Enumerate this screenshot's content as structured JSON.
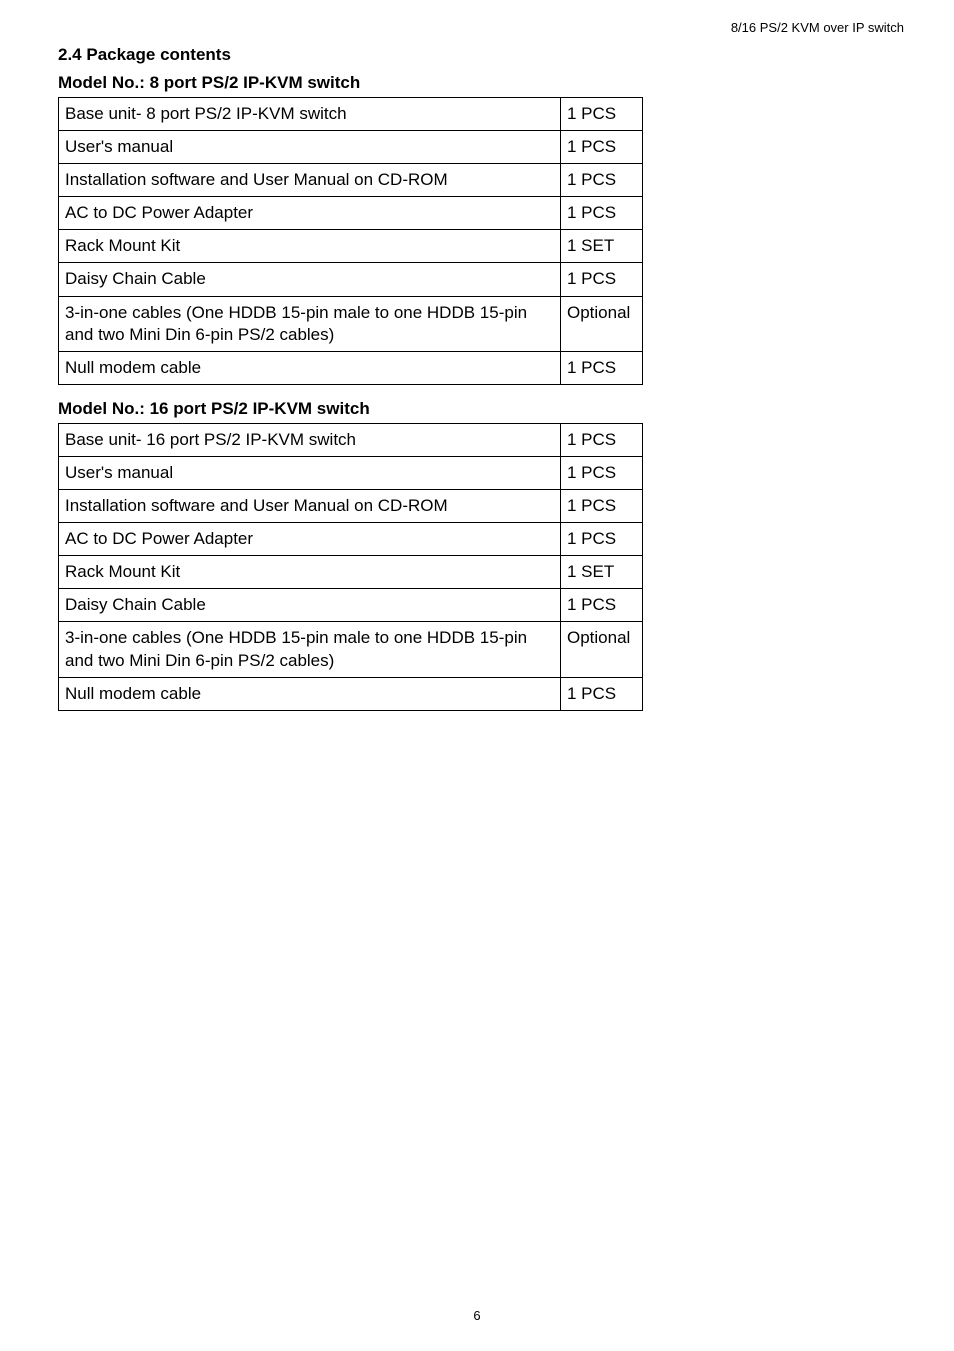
{
  "header": {
    "right_text": "8/16 PS/2 KVM over IP switch"
  },
  "section_title": "2.4 Package contents",
  "tables": [
    {
      "title": "Model No.: 8 port PS/2 IP-KVM switch",
      "rows": [
        {
          "item": "Base unit- 8 port PS/2 IP-KVM switch",
          "qty": "1 PCS"
        },
        {
          "item": "User's manual",
          "qty": "1 PCS"
        },
        {
          "item": "Installation software and User Manual on CD-ROM",
          "qty": "1 PCS"
        },
        {
          "item": "AC to DC Power Adapter",
          "qty": "1 PCS"
        },
        {
          "item": "Rack Mount Kit",
          "qty": "1 SET"
        },
        {
          "item": "Daisy Chain Cable",
          "qty": "1 PCS"
        },
        {
          "item": "3-in-one cables (One HDDB 15-pin male to one HDDB 15-pin and two Mini Din 6-pin PS/2 cables)",
          "qty": "Optional"
        },
        {
          "item": "Null modem cable",
          "qty": "1 PCS"
        }
      ]
    },
    {
      "title": "Model No.: 16 port PS/2 IP-KVM switch",
      "rows": [
        {
          "item": "Base unit- 16 port PS/2 IP-KVM switch",
          "qty": "1 PCS"
        },
        {
          "item": "User's manual",
          "qty": "1 PCS"
        },
        {
          "item": "Installation software and User Manual on CD-ROM",
          "qty": "1 PCS"
        },
        {
          "item": "AC to DC Power Adapter",
          "qty": "1 PCS"
        },
        {
          "item": "Rack Mount Kit",
          "qty": "1 SET"
        },
        {
          "item": "Daisy Chain Cable",
          "qty": "1 PCS"
        },
        {
          "item": "3-in-one cables (One HDDB 15-pin male to one HDDB 15-pin and two Mini Din 6-pin PS/2 cables)",
          "qty": "Optional"
        },
        {
          "item": "Null modem cable",
          "qty": "1 PCS"
        }
      ]
    }
  ],
  "page_number": "6"
}
